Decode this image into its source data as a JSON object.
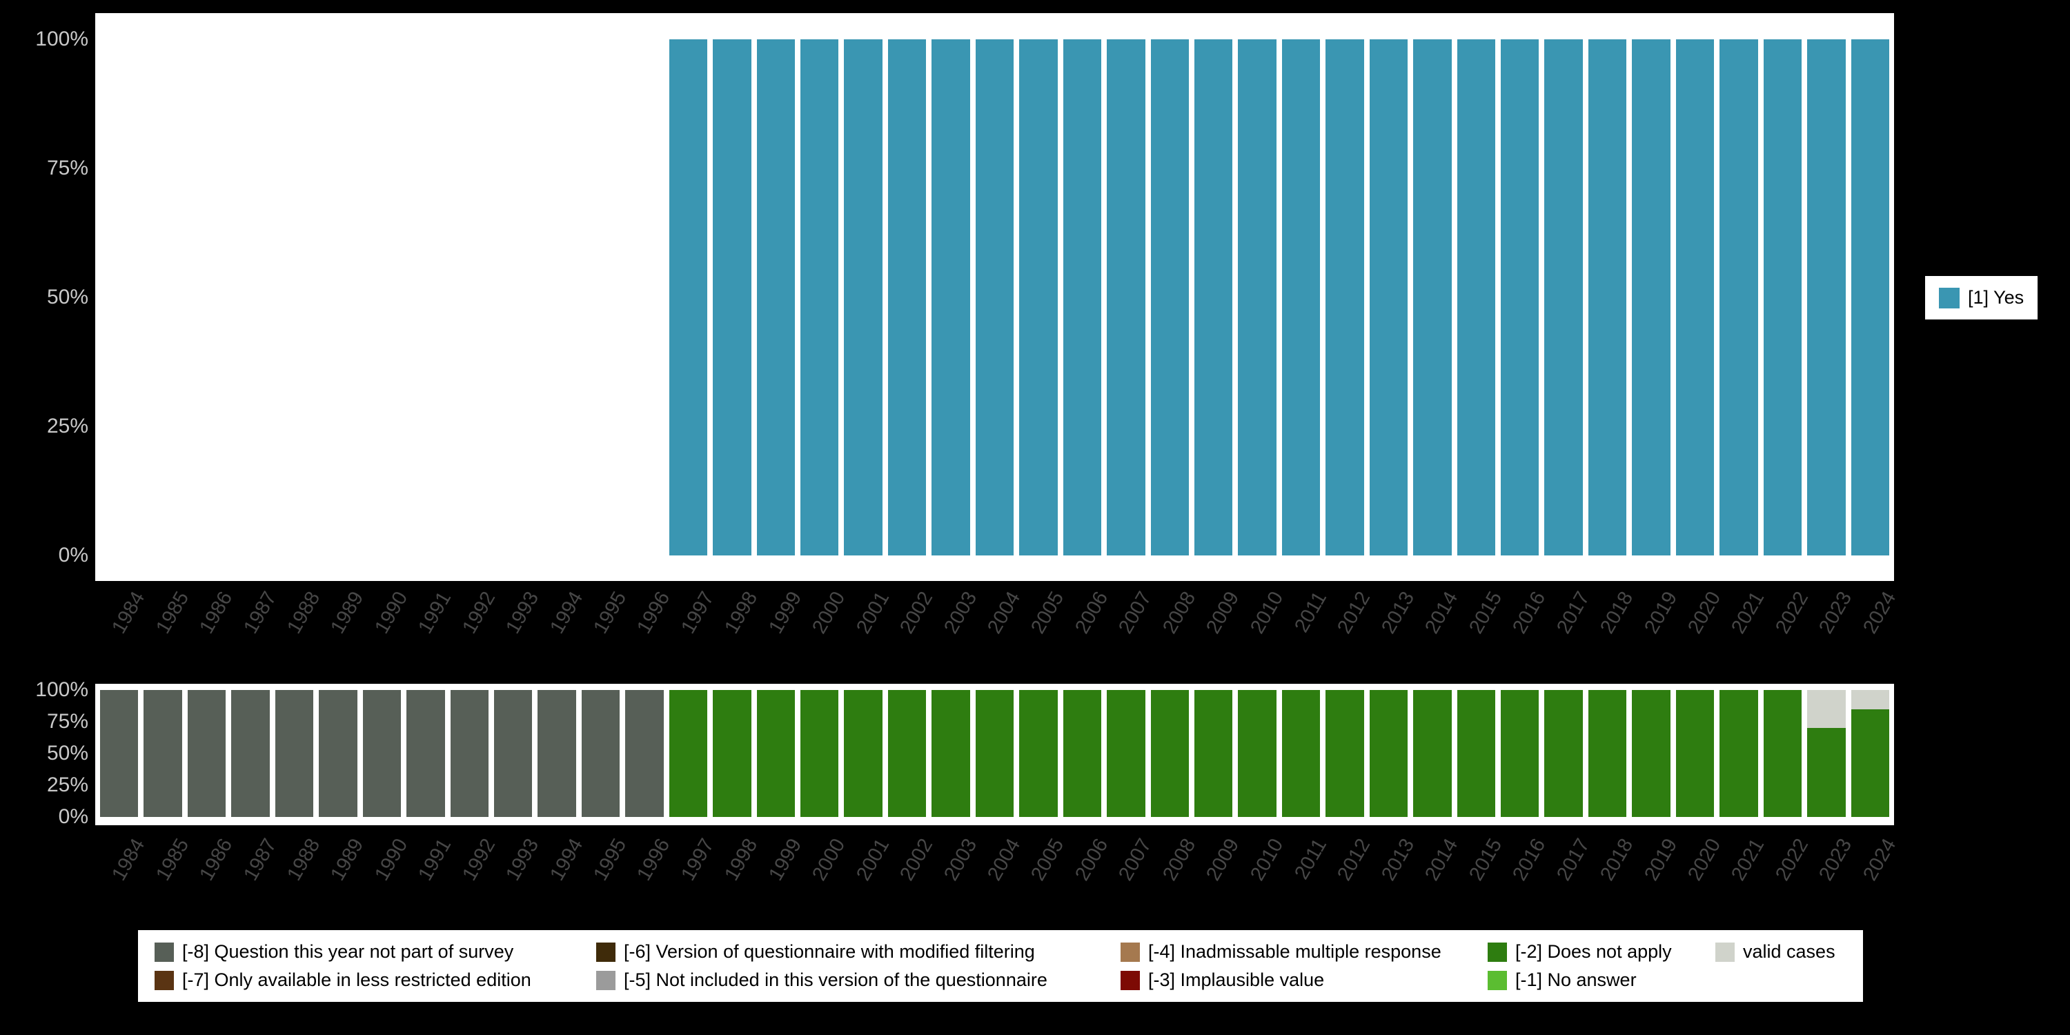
{
  "page": {
    "background": "#000000",
    "panel_background": "#ffffff"
  },
  "chart_data": [
    {
      "type": "bar",
      "stacked": true,
      "title": "",
      "xlabel": "",
      "ylabel": "",
      "ylim": [
        0,
        100
      ],
      "yticks": [
        0,
        25,
        50,
        75,
        100
      ],
      "ytick_labels": [
        "0%",
        "25%",
        "50%",
        "75%",
        "100%"
      ],
      "legend_position": "right",
      "x": [
        "1984",
        "1985",
        "1986",
        "1987",
        "1988",
        "1989",
        "1990",
        "1991",
        "1992",
        "1993",
        "1994",
        "1995",
        "1996",
        "1997",
        "1998",
        "1999",
        "2000",
        "2001",
        "2002",
        "2003",
        "2004",
        "2005",
        "2006",
        "2007",
        "2008",
        "2009",
        "2010",
        "2011",
        "2012",
        "2013",
        "2014",
        "2015",
        "2016",
        "2017",
        "2018",
        "2019",
        "2020",
        "2021",
        "2022",
        "2023",
        "2024"
      ],
      "series": [
        {
          "name": "[1] Yes",
          "color": "#3a96b2",
          "values": [
            0,
            0,
            0,
            0,
            0,
            0,
            0,
            0,
            0,
            0,
            0,
            0,
            0,
            100,
            100,
            100,
            100,
            100,
            100,
            100,
            100,
            100,
            100,
            100,
            100,
            100,
            100,
            100,
            100,
            100,
            100,
            100,
            100,
            100,
            100,
            100,
            100,
            100,
            100,
            100,
            100
          ]
        }
      ]
    },
    {
      "type": "bar",
      "stacked": true,
      "title": "",
      "xlabel": "",
      "ylabel": "",
      "ylim": [
        0,
        100
      ],
      "yticks": [
        0,
        25,
        50,
        75,
        100
      ],
      "ytick_labels": [
        "0%",
        "25%",
        "50%",
        "75%",
        "100%"
      ],
      "legend_position": "bottom",
      "x": [
        "1984",
        "1985",
        "1986",
        "1987",
        "1988",
        "1989",
        "1990",
        "1991",
        "1992",
        "1993",
        "1994",
        "1995",
        "1996",
        "1997",
        "1998",
        "1999",
        "2000",
        "2001",
        "2002",
        "2003",
        "2004",
        "2005",
        "2006",
        "2007",
        "2008",
        "2009",
        "2010",
        "2011",
        "2012",
        "2013",
        "2014",
        "2015",
        "2016",
        "2017",
        "2018",
        "2019",
        "2020",
        "2021",
        "2022",
        "2023",
        "2024"
      ],
      "series": [
        {
          "name": "[-8] Question this year not part of survey",
          "color": "#575f57",
          "values": [
            100,
            100,
            100,
            100,
            100,
            100,
            100,
            100,
            100,
            100,
            100,
            100,
            100,
            0,
            0,
            0,
            0,
            0,
            0,
            0,
            0,
            0,
            0,
            0,
            0,
            0,
            0,
            0,
            0,
            0,
            0,
            0,
            0,
            0,
            0,
            0,
            0,
            0,
            0,
            0,
            0
          ]
        },
        {
          "name": "[-7] Only available in less restricted edition",
          "color": "#5a3413",
          "values": []
        },
        {
          "name": "[-6] Version of questionnaire with modified filtering",
          "color": "#3f2b0a",
          "values": []
        },
        {
          "name": "[-5] Not included in this version of the questionnaire",
          "color": "#9b9b9b",
          "values": []
        },
        {
          "name": "[-4] Inadmissable multiple response",
          "color": "#a5794f",
          "values": []
        },
        {
          "name": "[-3] Implausible value",
          "color": "#7d0a04",
          "values": []
        },
        {
          "name": "[-2] Does not apply",
          "color": "#2e7d10",
          "values": [
            0,
            0,
            0,
            0,
            0,
            0,
            0,
            0,
            0,
            0,
            0,
            0,
            0,
            100,
            100,
            100,
            100,
            100,
            100,
            100,
            100,
            100,
            100,
            100,
            100,
            100,
            100,
            100,
            100,
            100,
            100,
            100,
            100,
            100,
            100,
            100,
            100,
            100,
            100,
            70,
            85
          ]
        },
        {
          "name": "[-1] No answer",
          "color": "#5bbd31",
          "values": []
        },
        {
          "name": "valid cases",
          "color": "#d0d3cb",
          "values": [
            0,
            0,
            0,
            0,
            0,
            0,
            0,
            0,
            0,
            0,
            0,
            0,
            0,
            0,
            0,
            0,
            0,
            0,
            0,
            0,
            0,
            0,
            0,
            0,
            0,
            0,
            0,
            0,
            0,
            0,
            0,
            0,
            0,
            0,
            0,
            0,
            0,
            0,
            0,
            30,
            15
          ]
        }
      ]
    }
  ]
}
